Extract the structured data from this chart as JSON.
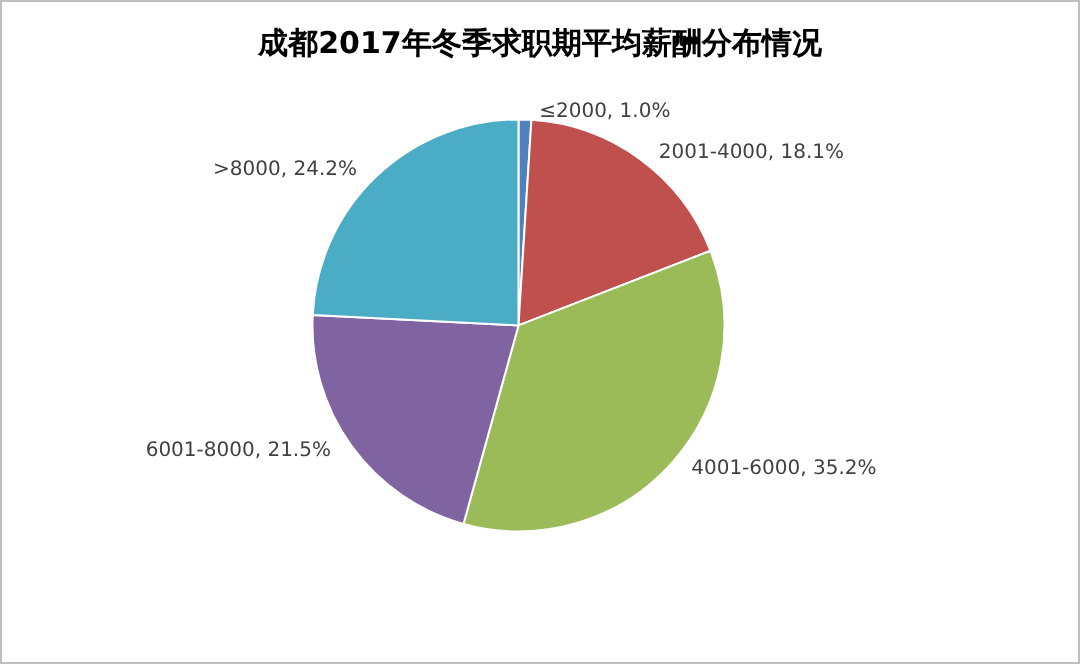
{
  "chart_data": {
    "type": "pie",
    "title": "成都2017年冬季求职期平均薪酬分布情况",
    "categories": [
      "≤2000",
      "2001-4000",
      "4001-6000",
      "6001-8000",
      ">8000"
    ],
    "values": [
      1.0,
      18.1,
      35.2,
      21.5,
      24.2
    ],
    "value_labels": [
      "1.0%",
      "18.1%",
      "35.2%",
      "21.5%",
      "24.2%"
    ],
    "colors": [
      "#4f81bd",
      "#c0504d",
      "#9bbb59",
      "#8064a2",
      "#4bacc6"
    ],
    "legend": false
  }
}
